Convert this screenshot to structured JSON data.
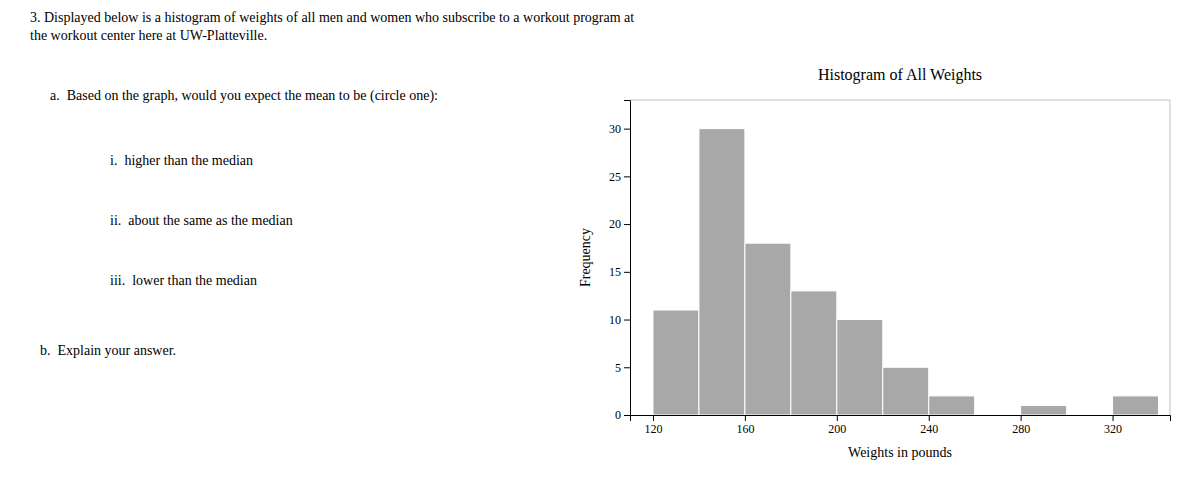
{
  "chart_data": {
    "type": "histogram",
    "title": "Histogram of All Weights",
    "xlabel": "Weights in pounds",
    "ylabel": "Frequency",
    "bins": [
      120,
      140,
      160,
      180,
      200,
      220,
      240,
      260,
      280,
      300,
      320,
      340
    ],
    "values": [
      11,
      30,
      18,
      13,
      10,
      5,
      2,
      0,
      1,
      0,
      2
    ],
    "color": "#a8a8a8",
    "xlim": [
      110,
      345
    ],
    "xticks": [
      120,
      160,
      200,
      240,
      280,
      320
    ],
    "ylim": [
      0,
      33
    ],
    "yticks": [
      0,
      5,
      10,
      15,
      20,
      25,
      30
    ],
    "grid": false,
    "annotations": [
      "3. Displayed below is a histogram of weights of all men and women who subscribe to a workout program at\nthe workout center here at UW-Platteville.",
      "a.  Based on the graph, would you expect the mean to be (circle one):",
      "i.  higher than the median",
      "ii.  about the same as the median",
      "iii.  lower than the median",
      "b.  Explain your answer."
    ]
  }
}
